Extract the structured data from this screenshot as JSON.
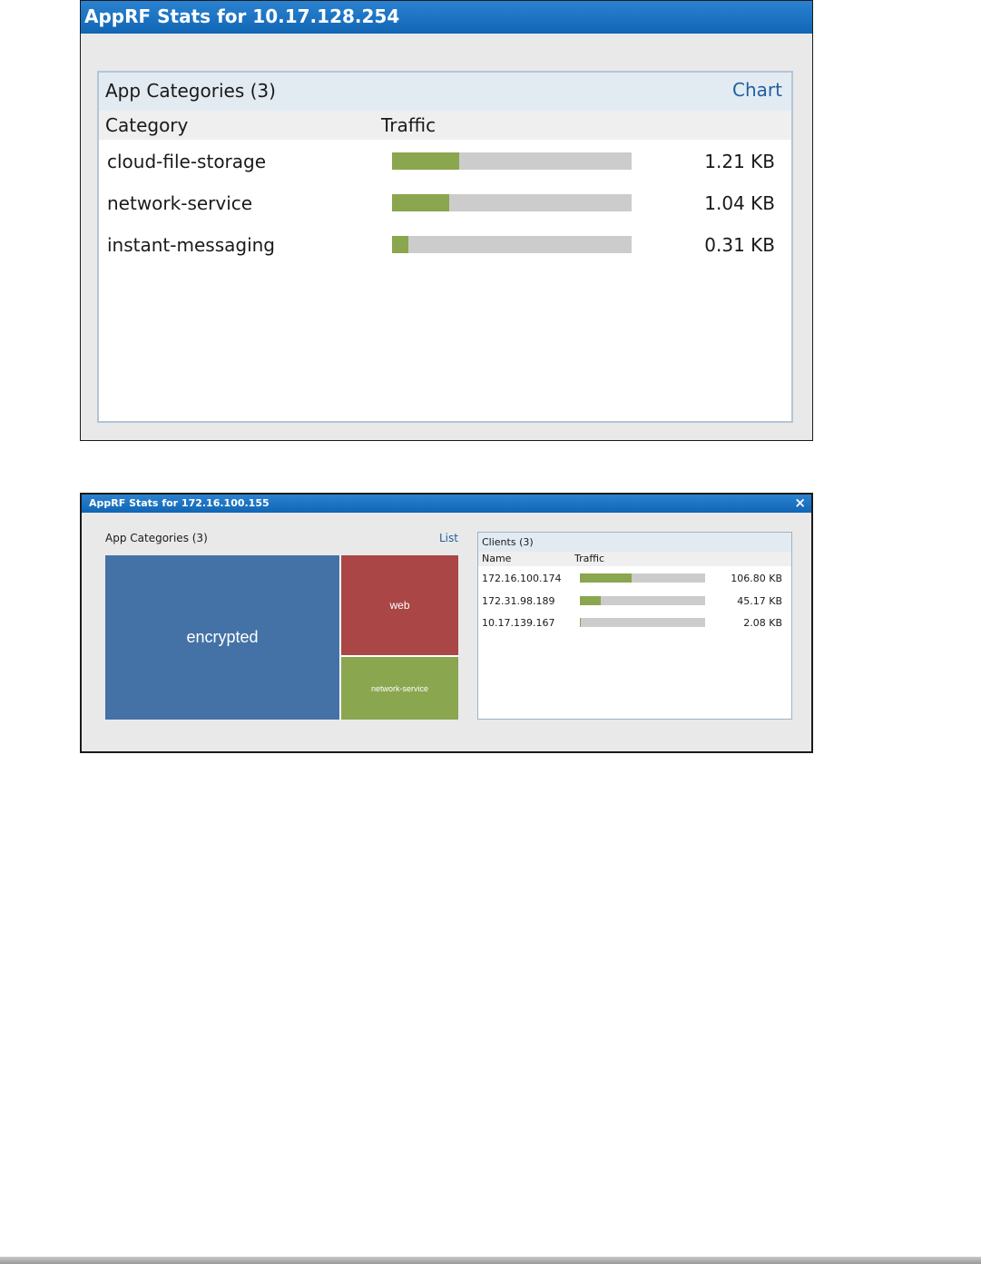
{
  "window1": {
    "title": "AppRF Stats for 10.17.128.254",
    "panel_title": "App Categories (3)",
    "view_link": "Chart",
    "columns": [
      "Category",
      "Traffic"
    ],
    "rows": [
      {
        "category": "cloud-file-storage",
        "traffic": "1.21 KB",
        "fill": 0.28
      },
      {
        "category": "network-service",
        "traffic": "1.04 KB",
        "fill": 0.24
      },
      {
        "category": "instant-messaging",
        "traffic": "0.31 KB",
        "fill": 0.07
      }
    ]
  },
  "window2": {
    "title": "AppRF Stats for 172.16.100.155",
    "close_glyph": "×",
    "categories_title": "App Categories (3)",
    "view_link": "List",
    "treemap": [
      {
        "label": "encrypted",
        "color": "#4472a6"
      },
      {
        "label": "web",
        "color": "#aa4646"
      },
      {
        "label": "network-service",
        "color": "#8aa64f"
      }
    ],
    "clients_title": "Clients (3)",
    "clients_columns": [
      "Name",
      "Traffic"
    ],
    "clients": [
      {
        "name": "172.16.100.174",
        "traffic": "106.80 KB",
        "fill": 0.41
      },
      {
        "name": "172.31.98.189",
        "traffic": "45.17 KB",
        "fill": 0.17
      },
      {
        "name": "10.17.139.167",
        "traffic": "2.08 KB",
        "fill": 0.01
      }
    ]
  },
  "colors": {
    "titlebar": "#1166b4",
    "bar_fill": "#8aa64f",
    "bar_track": "#cccccc",
    "link": "#1f5f9f"
  }
}
